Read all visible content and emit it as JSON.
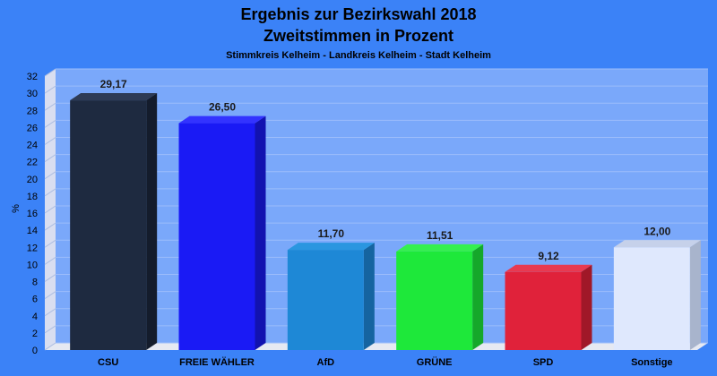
{
  "chart_data": {
    "type": "bar",
    "title": "Ergebnis zur Bezirkswahl 2018",
    "title_line2": "Zweitstimmen in Prozent",
    "subtitle": "Stimmkreis Kelheim - Landkreis Kelheim - Stadt Kelheim",
    "ylabel": "%",
    "xlabel": "",
    "ylim": [
      0,
      32
    ],
    "ytick_step": 2,
    "yticks": [
      "0",
      "2",
      "4",
      "6",
      "8",
      "10",
      "12",
      "14",
      "16",
      "18",
      "20",
      "22",
      "24",
      "26",
      "28",
      "30",
      "32"
    ],
    "grid": true,
    "categories": [
      "CSU",
      "FREIE WÄHLER",
      "AfD",
      "GRÜNE",
      "SPD",
      "Sonstige"
    ],
    "values": [
      29.17,
      26.5,
      11.7,
      11.51,
      9.12,
      12.0
    ],
    "value_labels": [
      "29,17",
      "26,50",
      "11,70",
      "11,51",
      "9,12",
      "12,00"
    ],
    "colors": [
      "#1e2a40",
      "#1a1af5",
      "#1e88d6",
      "#1ee83a",
      "#e0223a",
      "#dfe8fd"
    ],
    "colors_top": [
      "#2e3b55",
      "#3333ff",
      "#2a96e0",
      "#35f04e",
      "#e83a50",
      "#c6d1ea"
    ],
    "colors_side": [
      "#141c2c",
      "#1212b0",
      "#1564a0",
      "#15a82a",
      "#a01828",
      "#a8b4cc"
    ],
    "background": "#3b82f7",
    "plot_background": "#7aa8fa"
  }
}
